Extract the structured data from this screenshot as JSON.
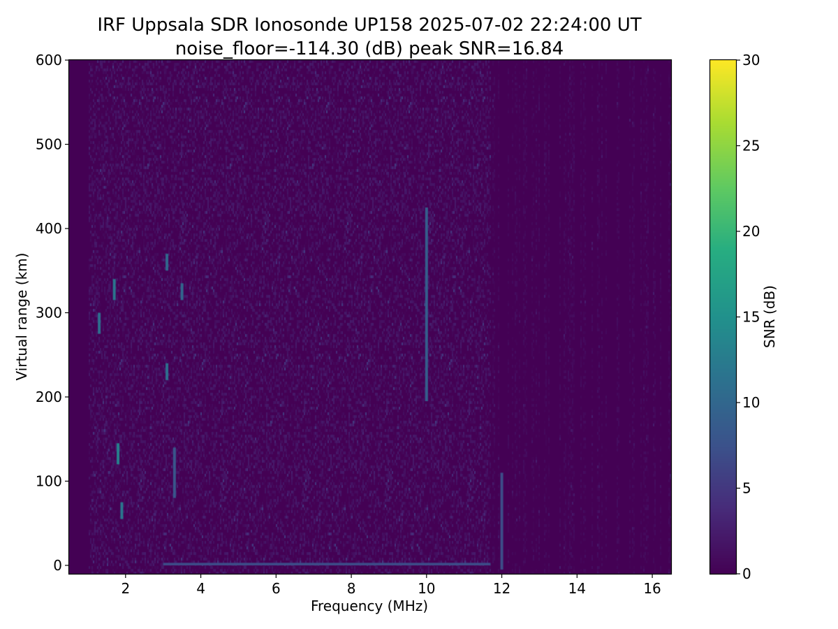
{
  "chart_data": {
    "type": "heatmap",
    "title": "IRF Uppsala SDR Ionosonde UP158 2025-07-02 22:24:00  UT",
    "subtitle": "noise_floor=-114.30 (dB) peak SNR=16.84",
    "xlabel": "Frequency (MHz)",
    "ylabel": "Virtual range (km)",
    "xlim": [
      0.5,
      16.5
    ],
    "ylim": [
      -10,
      600
    ],
    "xticks": [
      2,
      4,
      6,
      8,
      10,
      12,
      14,
      16
    ],
    "yticks": [
      0,
      100,
      200,
      300,
      400,
      500,
      600
    ],
    "grid": false,
    "colorbar": {
      "label": "SNR (dB)",
      "range": [
        0,
        30
      ],
      "ticks": [
        0,
        5,
        10,
        15,
        20,
        25,
        30
      ],
      "colormap": "viridis"
    },
    "features": [
      {
        "freq_mhz": 10.0,
        "range_km": [
          195,
          425
        ],
        "snr_db": 9
      },
      {
        "freq_mhz": 1.8,
        "range_km": [
          120,
          145
        ],
        "snr_db": 13
      },
      {
        "freq_mhz": 1.9,
        "range_km": [
          55,
          75
        ],
        "snr_db": 12
      },
      {
        "freq_mhz": 1.7,
        "range_km": [
          315,
          340
        ],
        "snr_db": 12
      },
      {
        "freq_mhz": 1.3,
        "range_km": [
          275,
          300
        ],
        "snr_db": 11
      },
      {
        "freq_mhz": 3.1,
        "range_km": [
          220,
          240
        ],
        "snr_db": 11
      },
      {
        "freq_mhz": 3.1,
        "range_km": [
          350,
          370
        ],
        "snr_db": 10
      },
      {
        "freq_mhz": 3.5,
        "range_km": [
          315,
          335
        ],
        "snr_db": 10
      },
      {
        "freq_mhz": 3.3,
        "range_km": [
          80,
          140
        ],
        "snr_db": 8
      },
      {
        "freq_mhz": 12.0,
        "range_km": [
          -5,
          110
        ],
        "snr_db": 7
      },
      {
        "freq_mhz": [
          3.0,
          11.7
        ],
        "range_km": [
          0,
          3
        ],
        "snr_db": 7
      }
    ]
  },
  "colors": {
    "background": "#ffffff",
    "viridis_low": "#440154",
    "viridis_high": "#fde725"
  }
}
